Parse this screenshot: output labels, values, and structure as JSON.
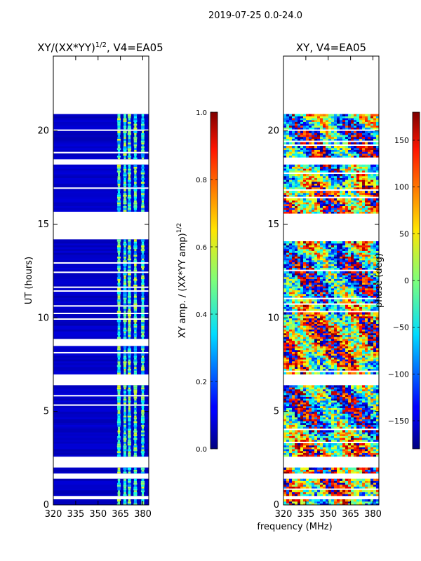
{
  "figure": {
    "suptitle": "2019-07-25 0.0-24.0",
    "xlabel_shared": "frequency (MHz)"
  },
  "chart_data": [
    {
      "type": "heatmap",
      "title_main": "XY/(XX*YY)",
      "title_exp": "1/2",
      "title_rest": ", V4=EA05",
      "xlabel": "",
      "ylabel": "UT (hours)",
      "xlim": [
        320,
        384
      ],
      "ylim": [
        0,
        24
      ],
      "x_ticks": [
        320,
        335,
        350,
        365,
        380
      ],
      "y_ticks": [
        0,
        5,
        10,
        15,
        20
      ],
      "bands": [
        [
          0.0,
          0.35
        ],
        [
          0.5,
          1.45
        ],
        [
          1.7,
          2.0
        ],
        [
          2.6,
          6.4
        ],
        [
          7.0,
          14.2
        ],
        [
          15.6,
          18.2
        ],
        [
          18.5,
          20.9
        ]
      ],
      "highlight_freqs": [
        364,
        368,
        371,
        375,
        380
      ],
      "colorbar": {
        "label_main": "XY amp. / (XX*YY amp)",
        "label_exp": "1/2",
        "min": 0.0,
        "max": 1.0,
        "ticks": [
          "0.0",
          "0.2",
          "0.4",
          "0.6",
          "0.8",
          "1.0"
        ],
        "tick_values": [
          0.0,
          0.2,
          0.4,
          0.6,
          0.8,
          1.0
        ]
      }
    },
    {
      "type": "heatmap",
      "title": "XY, V4=EA05",
      "xlabel": "frequency (MHz)",
      "ylabel": "",
      "xlim": [
        320,
        384
      ],
      "ylim": [
        0,
        24
      ],
      "x_ticks": [
        320,
        335,
        350,
        365,
        380
      ],
      "y_ticks": [
        0,
        5,
        10,
        15,
        20
      ],
      "bands": [
        [
          0.0,
          0.35
        ],
        [
          0.5,
          1.45
        ],
        [
          1.7,
          2.0
        ],
        [
          2.6,
          6.4
        ],
        [
          7.0,
          14.2
        ],
        [
          15.6,
          18.2
        ],
        [
          18.5,
          20.9
        ]
      ],
      "colorbar": {
        "label": "phase (deg)",
        "min": -180,
        "max": 180,
        "ticks": [
          "150",
          "100",
          "50",
          "0",
          "−50",
          "−100",
          "−150"
        ],
        "tick_values": [
          150,
          100,
          50,
          0,
          -50,
          -100,
          -150
        ]
      }
    }
  ],
  "colors": {
    "jet_low": "#00007f",
    "jet_mid": "#7fff7f",
    "jet_high": "#7f0000"
  }
}
